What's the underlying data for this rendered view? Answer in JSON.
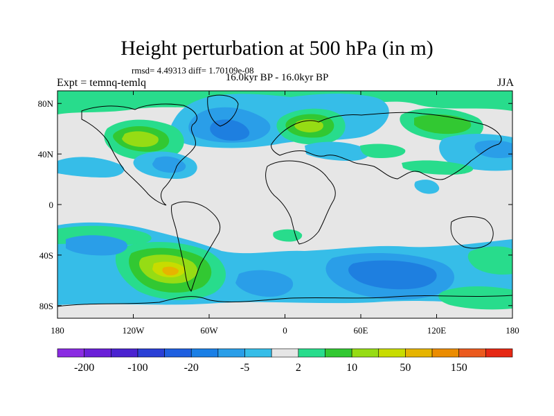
{
  "chart_data": {
    "type": "heatmap",
    "title": "Height perturbation at 500 hPa (in m)",
    "stats_text": "rmsd= 4.49313 diff= 1.70109e-08",
    "subtitle": "16.0kyr BP - 16.0kyr BP",
    "left_label": "Expt = temnq-temlq",
    "right_label": "JJA",
    "x_ticks": [
      {
        "value": -180,
        "label": "180"
      },
      {
        "value": -120,
        "label": "120W"
      },
      {
        "value": -60,
        "label": "60W"
      },
      {
        "value": 0,
        "label": "0"
      },
      {
        "value": 60,
        "label": "60E"
      },
      {
        "value": 120,
        "label": "120E"
      },
      {
        "value": 180,
        "label": "180"
      }
    ],
    "y_ticks": [
      {
        "value": 80,
        "label": "80N"
      },
      {
        "value": 40,
        "label": "40N"
      },
      {
        "value": 0,
        "label": "0"
      },
      {
        "value": -40,
        "label": "40S"
      },
      {
        "value": -80,
        "label": "80S"
      }
    ],
    "xlim": [
      -180,
      180
    ],
    "ylim": [
      -90,
      90
    ],
    "colorbar": {
      "colors": [
        "#8a2be2",
        "#6a1fd8",
        "#4a22d0",
        "#2a3fd6",
        "#1e5fe0",
        "#1a7fe6",
        "#2a9ee8",
        "#36bde8",
        "#e6e6e6",
        "#28dc8c",
        "#32c832",
        "#96dc14",
        "#c8dc00",
        "#e6b400",
        "#eb8c00",
        "#eb5a1e",
        "#e62814"
      ],
      "labels": [
        {
          "boundary": 1,
          "text": "-200"
        },
        {
          "boundary": 3,
          "text": "-100"
        },
        {
          "boundary": 5,
          "text": "-20"
        },
        {
          "boundary": 7,
          "text": "-5"
        },
        {
          "boundary": 9,
          "text": "2"
        },
        {
          "boundary": 11,
          "text": "10"
        },
        {
          "boundary": 13,
          "text": "50"
        },
        {
          "boundary": 15,
          "text": "150"
        }
      ]
    },
    "anomalies": [
      {
        "lon": -120,
        "lat": 50,
        "level": "positive",
        "value": 10
      },
      {
        "lon": 20,
        "lat": 55,
        "level": "positive",
        "value": 10
      },
      {
        "lon": -70,
        "lat": -50,
        "level": "positive",
        "value": 20
      },
      {
        "lon": -80,
        "lat": 55,
        "level": "negative",
        "value": -5
      },
      {
        "lon": -130,
        "lat": 38,
        "level": "negative",
        "value": -5
      },
      {
        "lon": 90,
        "lat": -55,
        "level": "negative",
        "value": -5
      },
      {
        "lon": 160,
        "lat": 45,
        "level": "negative",
        "value": -5
      },
      {
        "lon": 150,
        "lat": 55,
        "level": "positive",
        "value": 5
      }
    ]
  }
}
